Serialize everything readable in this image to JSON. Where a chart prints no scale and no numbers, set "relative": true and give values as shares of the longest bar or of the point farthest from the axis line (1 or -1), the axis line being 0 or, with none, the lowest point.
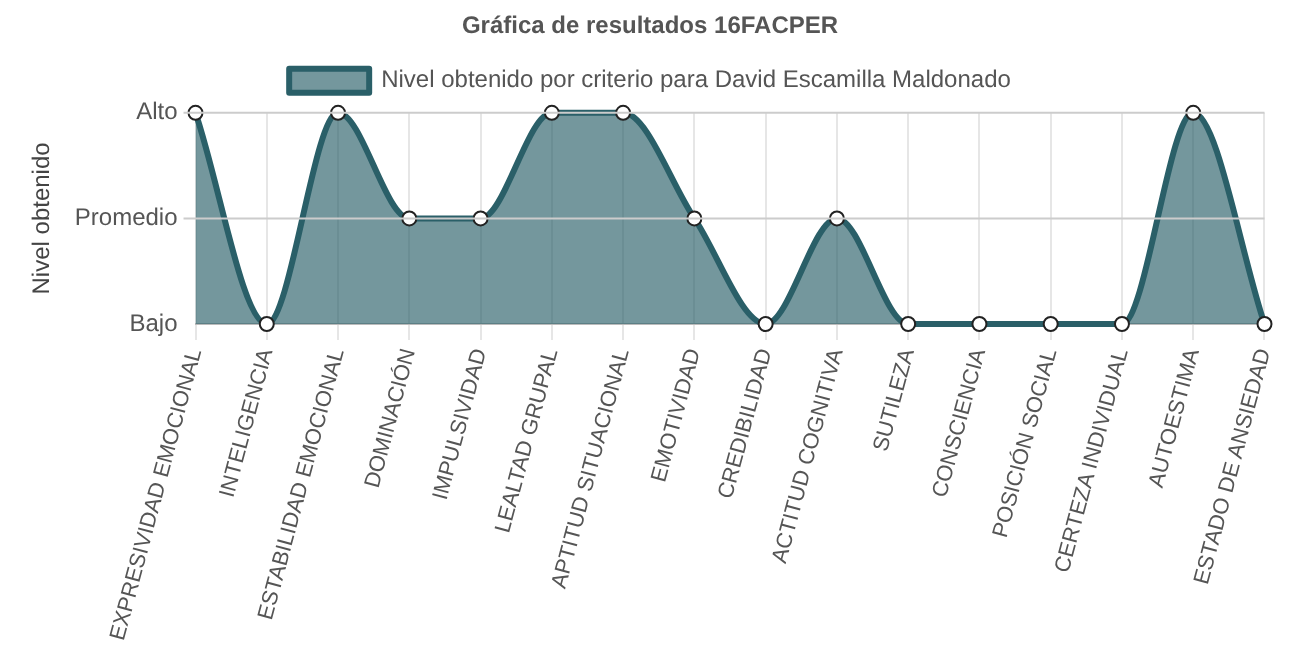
{
  "chart_data": {
    "type": "area",
    "title": "Gráfica de resultados 16FACPER",
    "ylabel": "Nivel obtenido",
    "categories": [
      "EXPRESIVIDAD EMOCIONAL",
      "INTELIGENCIA",
      "ESTABILIDAD EMOCIONAL",
      "DOMINACIÓN",
      "IMPULSIVIDAD",
      "LEALTAD GRUPAL",
      "APTITUD SITUACIONAL",
      "EMOTIVIDAD",
      "CREDIBILIDAD",
      "ACTITUD COGNITIVA",
      "SUTILEZA",
      "CONSCIENCIA",
      "POSICIÓN SOCIAL",
      "CERTEZA INDIVIDUAL",
      "AUTOESTIMA",
      "ESTADO DE ANSIEDAD"
    ],
    "series": [
      {
        "name": "Nivel obtenido por criterio para David Escamilla Maldonado",
        "color": "#2a5f68",
        "values": [
          1,
          0,
          1,
          0.5,
          0.5,
          1,
          1,
          0.5,
          0,
          0.5,
          0,
          0,
          0,
          0,
          1,
          0
        ]
      }
    ],
    "relative": true,
    "ref_lines": [
      {
        "axis": "y",
        "value": 1,
        "label": "Alto",
        "color": "#cccccc"
      },
      {
        "axis": "y",
        "value": 0.5,
        "label": "Promedio",
        "color": "#cccccc"
      }
    ],
    "annotations": [
      "Bajo"
    ],
    "grid": "x",
    "legend": "top",
    "marker": "circle"
  }
}
